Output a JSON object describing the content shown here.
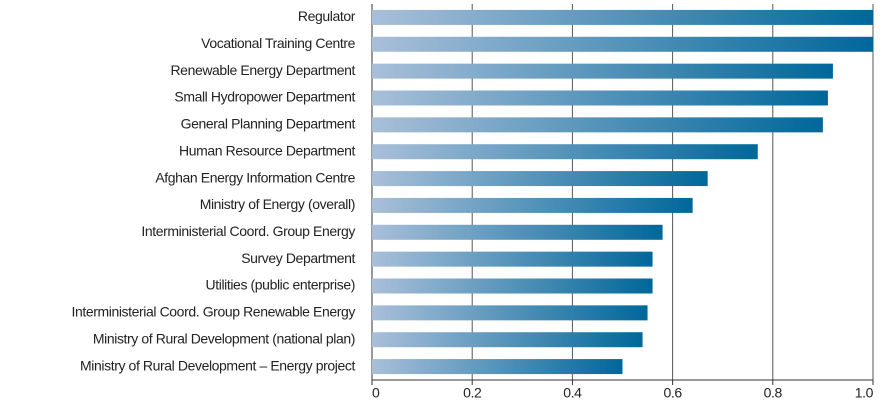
{
  "chart_data": {
    "type": "barh",
    "categories": [
      "Regulator",
      "Vocational Training Centre",
      "Renewable Energy Department",
      "Small Hydropower Department",
      "General Planning Department",
      "Human Resource Department",
      "Afghan Energy Information Centre",
      "Ministry of Energy (overall)",
      "Interministerial Coord. Group Energy",
      "Survey Department",
      "Utilities (public enterprise)",
      "Interministerial Coord. Group Renewable Energy",
      "Ministry of Rural Development (national plan)",
      "Ministry of Rural Development – Energy project"
    ],
    "values": [
      1.0,
      1.0,
      0.92,
      0.91,
      0.9,
      0.77,
      0.67,
      0.64,
      0.58,
      0.56,
      0.56,
      0.55,
      0.54,
      0.5
    ],
    "color": [
      "#a9bfd9",
      "#00679a"
    ],
    "xlim": [
      0,
      1
    ],
    "xticks": [
      0,
      0.2,
      0.4,
      0.6,
      0.8,
      {
        "value": 1,
        "label": "1.0"
      }
    ],
    "grid": true
  }
}
